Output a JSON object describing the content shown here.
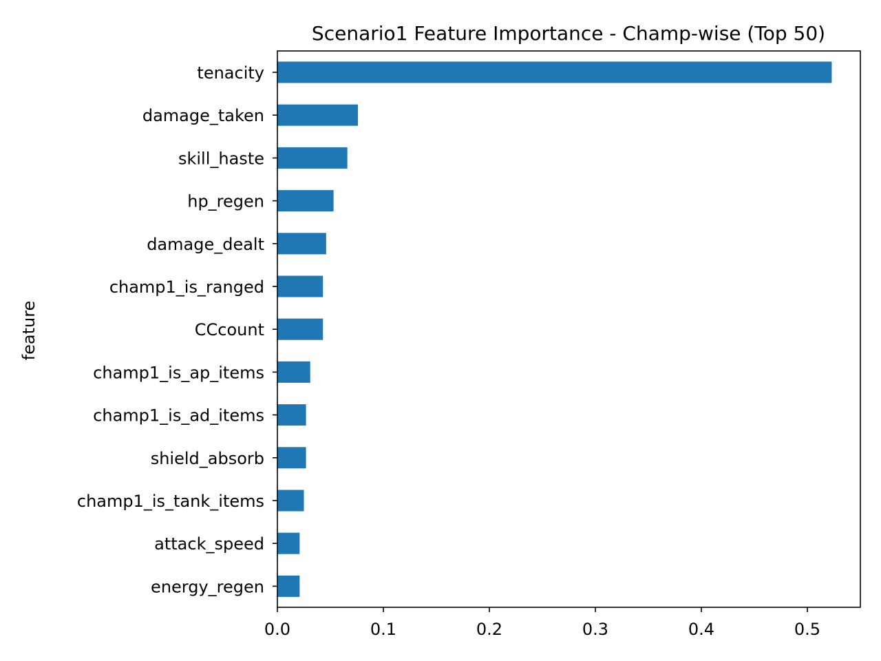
{
  "chart_data": {
    "type": "bar",
    "orientation": "horizontal",
    "title": "Scenario1 Feature Importance - Champ-wise (Top 50)",
    "xlabel": "",
    "ylabel": "feature",
    "categories": [
      "tenacity",
      "damage_taken",
      "skill_haste",
      "hp_regen",
      "damage_dealt",
      "champ1_is_ranged",
      "CCcount",
      "champ1_is_ap_items",
      "champ1_is_ad_items",
      "shield_absorb",
      "champ1_is_tank_items",
      "attack_speed",
      "energy_regen"
    ],
    "values": [
      0.523,
      0.076,
      0.066,
      0.053,
      0.046,
      0.043,
      0.043,
      0.031,
      0.027,
      0.027,
      0.025,
      0.021,
      0.021
    ],
    "xlim": [
      0,
      0.55
    ],
    "xticks": [
      0.0,
      0.1,
      0.2,
      0.3,
      0.4,
      0.5
    ],
    "xtick_labels": [
      "0.0",
      "0.1",
      "0.2",
      "0.3",
      "0.4",
      "0.5"
    ],
    "bar_color": "#1f77b4",
    "grid": false,
    "legend": "none"
  }
}
